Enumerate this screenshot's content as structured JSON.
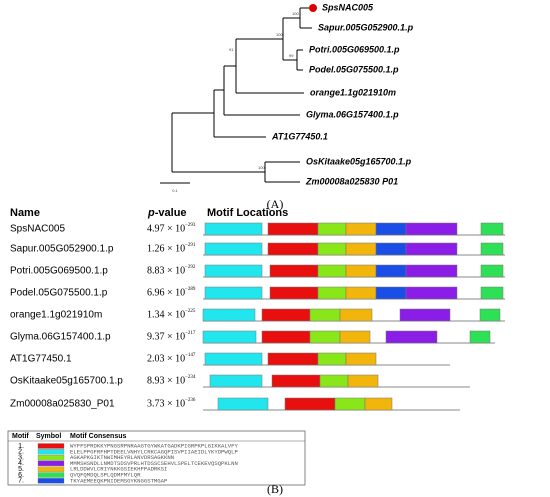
{
  "tree": {
    "leaves": [
      "SpsNAC005",
      "Sapur.005G052900.1.p",
      "Potri.005G069500.1.p",
      "Podel.05G075500.1.p",
      "orange1.1g021910m",
      "Glyma.06G157400.1.p",
      "AT1G77450.1",
      "OsKitaake05g165700.1.p",
      "Zm00008a025830 P01"
    ],
    "bootstrap": [
      "100",
      "99",
      "100",
      "91",
      "100"
    ],
    "scale": "0.1",
    "panel_label": "(A)"
  },
  "motifs": {
    "headers": {
      "name": "Name",
      "pvalue_italic": "p",
      "pvalue_rest": "-value",
      "locations": "Motif Locations"
    },
    "rows": [
      {
        "name": "SpsNAC005",
        "mantissa": "4.97 × 10",
        "exponent": "−293"
      },
      {
        "name": "Sapur.005G052900.1.p",
        "mantissa": "1.26 × 10",
        "exponent": "−291"
      },
      {
        "name": "Potri.005G069500.1.p",
        "mantissa": "8.83 × 10",
        "exponent": "−292"
      },
      {
        "name": "Podel.05G075500.1.p",
        "mantissa": "6.96 × 10",
        "exponent": "−289"
      },
      {
        "name": "orange1.1g021910m",
        "mantissa": "1.34 × 10",
        "exponent": "−225"
      },
      {
        "name": "Glyma.06G157400.1.p",
        "mantissa": "9.37 × 10",
        "exponent": "−217"
      },
      {
        "name": "AT1G77450.1",
        "mantissa": "2.03 × 10",
        "exponent": "−147"
      },
      {
        "name": "OsKitaake05g165700.1.p",
        "mantissa": "8.93 × 10",
        "exponent": "−234"
      },
      {
        "name": "Zm00008a025830_P01",
        "mantissa": "3.73 × 10",
        "exponent": "−236"
      }
    ],
    "legend": {
      "headers": [
        "Motif",
        "Symbol",
        "Motif Consensus"
      ],
      "rows": [
        {
          "id": "1.",
          "color": "#e8100f",
          "consensus": "WYFFSPRDKKYPNGSRPNRAAGTGYWKATGADKPIGRPKPLGIKKALVFY"
        },
        {
          "id": "2.",
          "color": "#22e6ee",
          "consensus": "ELELPPGFRFHPTDEELVNHYLCRKCAGQPISVPIIAEIDLYKYDPWQLP"
        },
        {
          "id": "3.",
          "color": "#88e619",
          "consensus": "AGKAPKGIKTNWIMHEYRLANVDRSAGKKNN"
        },
        {
          "id": "4.",
          "color": "#8a1de6",
          "consensus": "MMMSHSNDLLNMDTSDSVPRLHTDSSCSEHVLSPELTCEKEVQSQPKLNN"
        },
        {
          "id": "5.",
          "color": "#f2b50c",
          "consensus": "LRLDDWVLCRIYNKKGSIEKHFPADRKSI"
        },
        {
          "id": "6.",
          "color": "#2ee055",
          "consensus": "QVQFQMDQLSPLQDMFMYLQR"
        },
        {
          "id": "7.",
          "color": "#1b4ee6",
          "consensus": "TKYAEMEEQKPNIDEMSGYKNGGSTMGAP"
        }
      ]
    },
    "panel_label": "(B)"
  }
}
